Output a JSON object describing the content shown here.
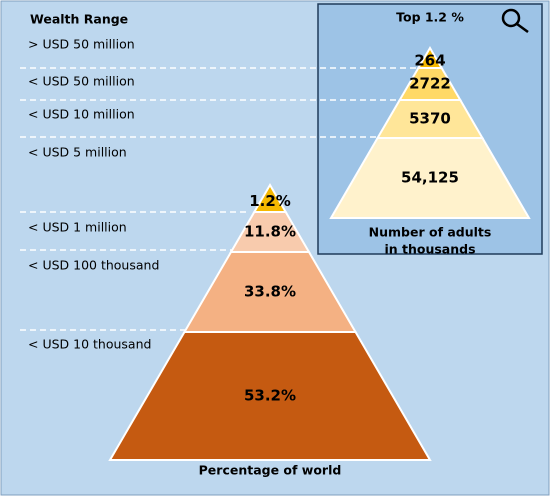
{
  "wealth_range": {
    "title": "Wealth Range",
    "labels": [
      "> USD 50 million",
      "< USD 50 million",
      "< USD 10 million",
      "< USD 5 million",
      "< USD 1 million",
      "< USD 100 thousand",
      "< USD 10 thousand"
    ]
  },
  "world_pyramid": {
    "segments": [
      "1.2%",
      "11.8%",
      "33.8%",
      "53.2%"
    ],
    "caption": "Percentage of world"
  },
  "adults_pyramid": {
    "title": "Top 1.2 %",
    "segments": [
      "264",
      "2722",
      "5370",
      "54,125"
    ],
    "caption": [
      "Number of adults",
      "in thousands"
    ]
  }
}
